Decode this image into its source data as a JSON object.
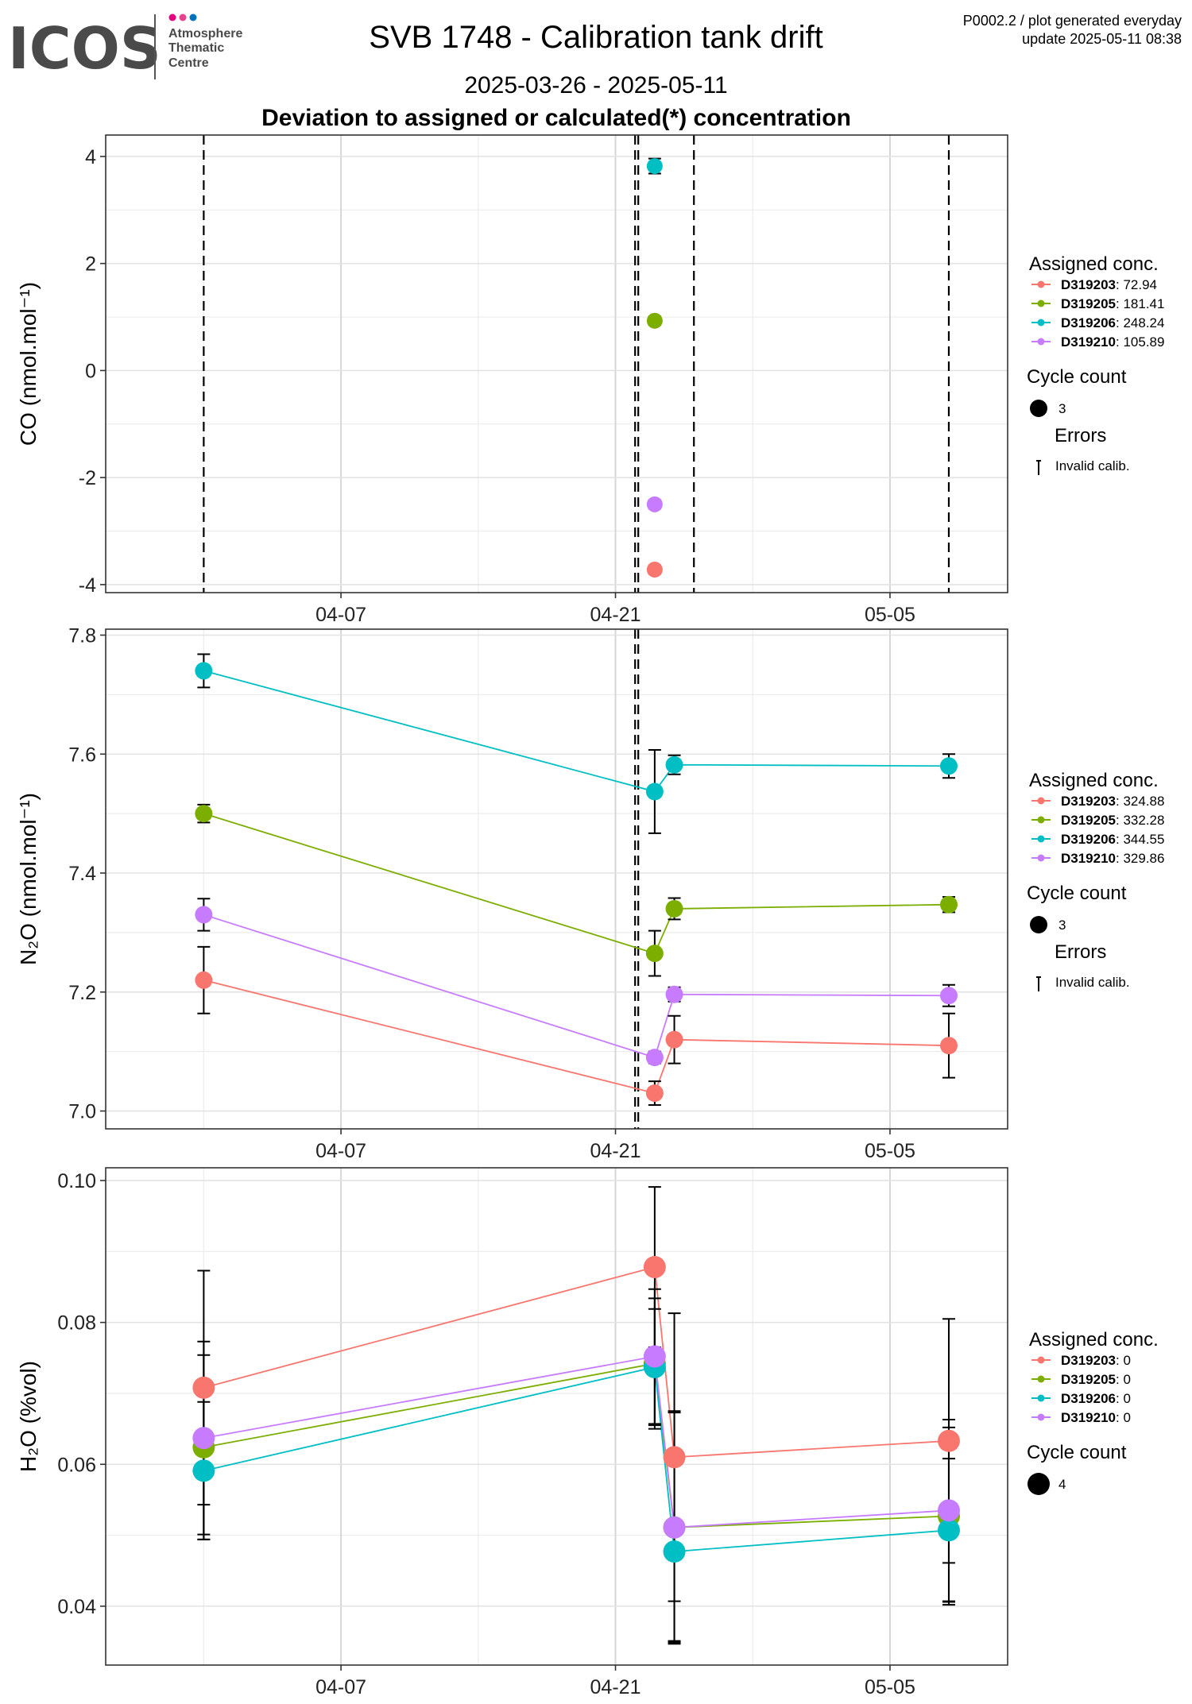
{
  "header": {
    "logo_text": "ICOS",
    "org_line1": "Atmosphere",
    "org_line2": "Thematic",
    "org_line3": "Centre",
    "title": "SVB 1748 - Calibration tank drift",
    "date_range": "2025-03-26 - 2025-05-11",
    "subtitle": "Deviation to assigned or calculated(*) concentration",
    "meta_line1": "P0002.2 / plot generated everyday",
    "meta_line2": "update  2025-05-11 08:38"
  },
  "colors": {
    "D319203": "#F8766D",
    "D319205": "#7CAE00",
    "D319206": "#00BFC4",
    "D319210": "#C77CFF",
    "logo_dot1": "#E6007E",
    "logo_dot2": "#E8418F",
    "logo_dot3": "#0072BC"
  },
  "chart_data": [
    {
      "type": "scatter",
      "id": "co",
      "ylabel": "CO (nmol.mol⁻¹)",
      "x_ticks": [
        "04-07",
        "04-21",
        "05-05"
      ],
      "y_ticks": [
        "-4",
        "-2",
        "0",
        "2",
        "4"
      ],
      "xlim": [
        "2025-03-26",
        "2025-05-11"
      ],
      "ylim": [
        -4.15,
        4.4
      ],
      "grid": true,
      "calibration_lines": [
        "2025-03-31",
        "2025-04-22",
        "2025-04-22",
        "2025-04-25",
        "2025-05-08"
      ],
      "series": [
        {
          "name": "D319203",
          "points": [
            {
              "x": "2025-04-23",
              "y": -3.72,
              "err": 0.08
            }
          ]
        },
        {
          "name": "D319205",
          "points": [
            {
              "x": "2025-04-23",
              "y": 0.93,
              "err": 0.08
            }
          ]
        },
        {
          "name": "D319206",
          "points": [
            {
              "x": "2025-04-23",
              "y": 3.82,
              "err": 0.14
            }
          ]
        },
        {
          "name": "D319210",
          "points": [
            {
              "x": "2025-04-23",
              "y": -2.5,
              "err": 0.08
            }
          ]
        }
      ],
      "legend": {
        "title": "Assigned conc.",
        "entries": [
          {
            "tank": "D319203",
            "value": ": 72.94"
          },
          {
            "tank": "D319205",
            "value": ": 181.41"
          },
          {
            "tank": "D319206",
            "value": ": 248.24"
          },
          {
            "tank": "D319210",
            "value": ": 105.89"
          }
        ],
        "cycle_title": "Cycle count",
        "cycle_value": "3",
        "errors_title": "Errors",
        "errors_label": "Invalid calib."
      }
    },
    {
      "type": "line",
      "id": "n2o",
      "ylabel": "N₂O (nmol.mol⁻¹)",
      "x_ticks": [
        "04-07",
        "04-21",
        "05-05"
      ],
      "y_ticks": [
        "7.0",
        "7.2",
        "7.4",
        "7.6",
        "7.8"
      ],
      "xlim": [
        "2025-03-26",
        "2025-05-11"
      ],
      "ylim": [
        6.97,
        7.81
      ],
      "grid": true,
      "calibration_lines": [
        "2025-04-22",
        "2025-04-22"
      ],
      "series": [
        {
          "name": "D319203",
          "points": [
            {
              "x": "2025-03-31",
              "y": 7.22,
              "err": 0.056
            },
            {
              "x": "2025-04-23",
              "y": 7.03,
              "err": 0.02
            },
            {
              "x": "2025-04-24",
              "y": 7.12,
              "err": 0.04
            },
            {
              "x": "2025-05-08",
              "y": 7.11,
              "err": 0.054
            }
          ]
        },
        {
          "name": "D319205",
          "points": [
            {
              "x": "2025-03-31",
              "y": 7.5,
              "err": 0.015
            },
            {
              "x": "2025-04-23",
              "y": 7.265,
              "err": 0.038
            },
            {
              "x": "2025-04-24",
              "y": 7.34,
              "err": 0.018
            },
            {
              "x": "2025-05-08",
              "y": 7.347,
              "err": 0.013
            }
          ]
        },
        {
          "name": "D319206",
          "points": [
            {
              "x": "2025-03-31",
              "y": 7.74,
              "err": 0.028
            },
            {
              "x": "2025-04-23",
              "y": 7.537,
              "err": 0.07
            },
            {
              "x": "2025-04-24",
              "y": 7.582,
              "err": 0.016
            },
            {
              "x": "2025-05-08",
              "y": 7.58,
              "err": 0.02
            }
          ]
        },
        {
          "name": "D319210",
          "points": [
            {
              "x": "2025-03-31",
              "y": 7.33,
              "err": 0.027
            },
            {
              "x": "2025-04-23",
              "y": 7.09,
              "err": 0.01
            },
            {
              "x": "2025-04-24",
              "y": 7.196,
              "err": 0.012
            },
            {
              "x": "2025-05-08",
              "y": 7.194,
              "err": 0.018
            }
          ]
        }
      ],
      "legend": {
        "title": "Assigned conc.",
        "entries": [
          {
            "tank": "D319203",
            "value": ": 324.88"
          },
          {
            "tank": "D319205",
            "value": ": 332.28"
          },
          {
            "tank": "D319206",
            "value": ": 344.55"
          },
          {
            "tank": "D319210",
            "value": ": 329.86"
          }
        ],
        "cycle_title": "Cycle count",
        "cycle_value": "3",
        "errors_title": "Errors",
        "errors_label": "Invalid calib."
      }
    },
    {
      "type": "line",
      "id": "h2o",
      "ylabel": "H₂O (%vol)",
      "x_ticks": [
        "04-07",
        "04-21",
        "05-05"
      ],
      "y_ticks": [
        "0.04",
        "0.06",
        "0.08",
        "0.10"
      ],
      "xlim": [
        "2025-03-26",
        "2025-05-11"
      ],
      "ylim": [
        0.0317,
        0.1018
      ],
      "grid": true,
      "calibration_lines": [],
      "series": [
        {
          "name": "D319203",
          "points": [
            {
              "x": "2025-03-31",
              "y": 0.0708,
              "err": 0.0165
            },
            {
              "x": "2025-04-23",
              "y": 0.0878,
              "err": 0.0113
            },
            {
              "x": "2025-04-24",
              "y": 0.061,
              "err": 0.0203
            },
            {
              "x": "2025-05-08",
              "y": 0.0633,
              "err": 0.0172
            }
          ]
        },
        {
          "name": "D319205",
          "points": [
            {
              "x": "2025-03-31",
              "y": 0.0624,
              "err": 0.013
            },
            {
              "x": "2025-04-23",
              "y": 0.0742,
              "err": 0.0092
            },
            {
              "x": "2025-04-24",
              "y": 0.0511,
              "err": 0.0162
            },
            {
              "x": "2025-05-08",
              "y": 0.0527,
              "err": 0.0125
            }
          ]
        },
        {
          "name": "D319206",
          "points": [
            {
              "x": "2025-03-31",
              "y": 0.0591,
              "err": 0.0097
            },
            {
              "x": "2025-04-23",
              "y": 0.0737,
              "err": 0.0082
            },
            {
              "x": "2025-04-24",
              "y": 0.0477,
              "err": 0.0126
            },
            {
              "x": "2025-05-08",
              "y": 0.0507,
              "err": 0.0101
            }
          ]
        },
        {
          "name": "D319210",
          "points": [
            {
              "x": "2025-03-31",
              "y": 0.0637,
              "err": 0.0136
            },
            {
              "x": "2025-04-23",
              "y": 0.0752,
              "err": 0.0095
            },
            {
              "x": "2025-04-24",
              "y": 0.0511,
              "err": 0.0164
            },
            {
              "x": "2025-05-08",
              "y": 0.0535,
              "err": 0.0128
            }
          ]
        }
      ],
      "legend": {
        "title": "Assigned conc.",
        "entries": [
          {
            "tank": "D319203",
            "value": ": 0"
          },
          {
            "tank": "D319205",
            "value": ": 0"
          },
          {
            "tank": "D319206",
            "value": ": 0"
          },
          {
            "tank": "D319210",
            "value": ": 0"
          }
        ],
        "cycle_title": "Cycle count",
        "cycle_value": "4",
        "errors_title": "",
        "errors_label": ""
      }
    }
  ]
}
